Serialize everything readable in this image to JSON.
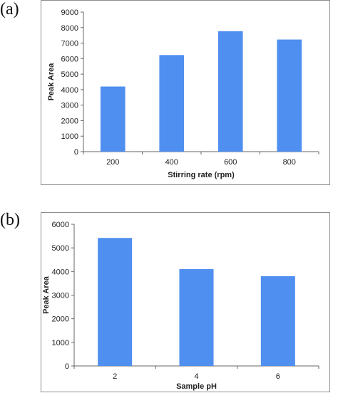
{
  "chart_data": [
    {
      "panel_label": "(a)",
      "type": "bar",
      "categories": [
        "200",
        "400",
        "600",
        "800"
      ],
      "values": [
        4200,
        6230,
        7770,
        7230
      ],
      "xlabel": "Stirring rate (rpm)",
      "ylabel": "Peak Area",
      "ylim": [
        0,
        9000
      ],
      "yticks": [
        "0",
        "1000",
        "2000",
        "3000",
        "4000",
        "5000",
        "6000",
        "7000",
        "8000",
        "9000"
      ],
      "bar_color": "#4f8ff0",
      "grid": false,
      "legend": "none"
    },
    {
      "panel_label": "(b)",
      "type": "bar",
      "categories": [
        "2",
        "4",
        "6"
      ],
      "values": [
        5420,
        4100,
        3800
      ],
      "xlabel": "Sample pH",
      "ylabel": "Peak Area",
      "ylim": [
        0,
        6000
      ],
      "yticks": [
        "0",
        "1000",
        "2000",
        "3000",
        "4000",
        "5000",
        "6000"
      ],
      "bar_color": "#4f8ff0",
      "grid": false,
      "legend": "none"
    }
  ]
}
